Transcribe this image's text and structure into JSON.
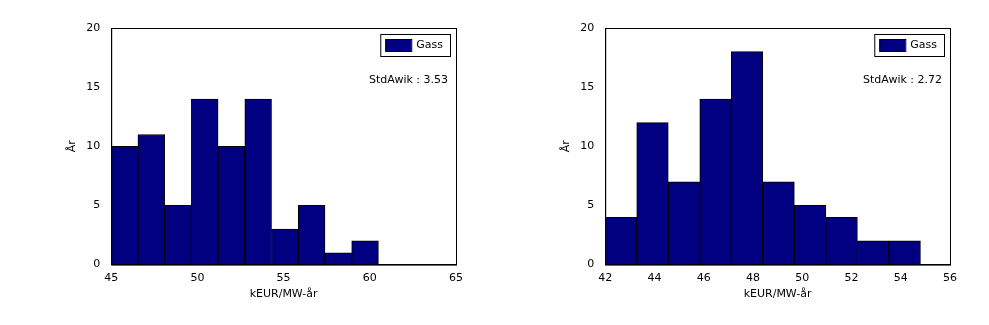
{
  "chart_data": [
    {
      "type": "histogram",
      "xlabel": "kEUR/MW-år",
      "ylabel": "År",
      "annotation": "StdAwik : 3.53",
      "bins": [
        45,
        46.55,
        48.1,
        49.65,
        51.2,
        52.75,
        54.3,
        55.85,
        57.4,
        58.95,
        60.5
      ],
      "series": [
        {
          "name": "Gass",
          "color": "#000080",
          "values": [
            10,
            11,
            5,
            14,
            10,
            14,
            3,
            5,
            1,
            2
          ]
        }
      ],
      "xlim": [
        45,
        65
      ],
      "xticks": [
        45,
        50,
        55,
        60,
        65
      ],
      "ylim": [
        0,
        20
      ],
      "yticks": [
        0,
        5,
        10,
        15,
        20
      ],
      "grid": false,
      "legend": "upper right"
    },
    {
      "type": "histogram",
      "xlabel": "kEUR/MW-år",
      "ylabel": "År",
      "annotation": "StdAwik : 2.72",
      "bins": [
        42,
        43.28,
        44.56,
        45.84,
        47.12,
        48.4,
        49.68,
        50.96,
        52.24,
        53.52,
        54.8
      ],
      "series": [
        {
          "name": "Gass",
          "color": "#000080",
          "values": [
            4,
            12,
            7,
            14,
            18,
            7,
            5,
            4,
            2,
            2
          ]
        }
      ],
      "xlim": [
        42,
        56
      ],
      "xticks": [
        42,
        44,
        46,
        48,
        50,
        52,
        54,
        56
      ],
      "ylim": [
        0,
        20
      ],
      "yticks": [
        0,
        5,
        10,
        15,
        20
      ],
      "grid": false,
      "legend": "upper right"
    }
  ]
}
